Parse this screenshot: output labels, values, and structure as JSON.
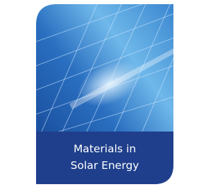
{
  "card": {
    "title_lines": [
      "Materials in",
      "Solar Energy"
    ]
  }
}
